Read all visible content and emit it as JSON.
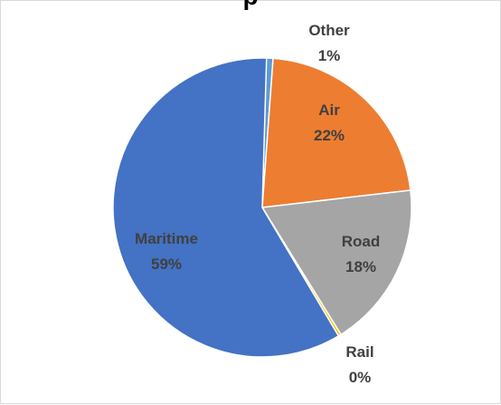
{
  "chart_data": {
    "type": "pie",
    "title": "p",
    "categories": [
      "Other",
      "Air",
      "Road",
      "Rail",
      "Maritime"
    ],
    "values": [
      1,
      22,
      18,
      0,
      59
    ],
    "labels": [
      "1%",
      "22%",
      "18%",
      "0%",
      "59%"
    ],
    "colors": [
      "#5b9bd5",
      "#ed7d31",
      "#a5a5a5",
      "#ffc000",
      "#4472c4"
    ],
    "legend": "none",
    "data_labels": "category-and-percent"
  }
}
